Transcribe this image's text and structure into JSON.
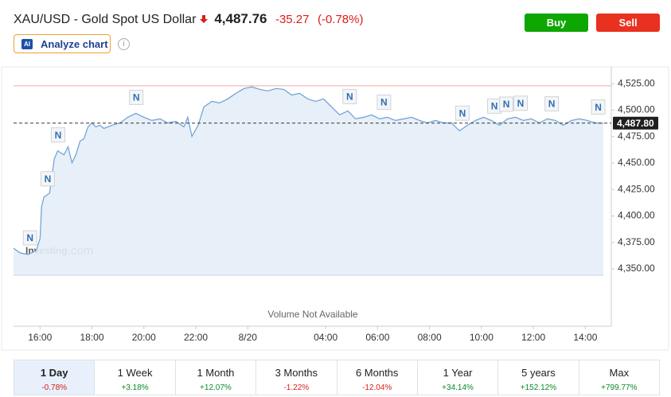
{
  "header": {
    "symbol_title": "XAU/USD - Gold Spot US Dollar",
    "price": "4,487.76",
    "change": "-35.27",
    "change_pct": "(-0.78%)"
  },
  "buttons": {
    "buy": "Buy",
    "sell": "Sell",
    "analyze_badge": "AI",
    "analyze": "Analyze chart",
    "info": "i"
  },
  "chart_data": {
    "type": "line",
    "x": [
      -1.02,
      -0.77,
      -0.46,
      -0.15,
      0,
      0.06,
      0.15,
      0.37,
      0.55,
      0.68,
      0.92,
      1.08,
      1.23,
      1.38,
      1.54,
      1.69,
      1.85,
      2,
      2.15,
      2.31,
      2.46,
      2.77,
      3.08,
      3.38,
      3.69,
      4,
      4.31,
      4.62,
      4.92,
      5.23,
      5.54,
      5.69,
      5.85,
      6.09,
      6.31,
      6.62,
      6.92,
      7.23,
      7.54,
      7.85,
      8.15,
      8.46,
      8.77,
      9.08,
      9.38,
      9.69,
      10,
      10.31,
      10.62,
      10.92,
      11.23,
      11.54,
      11.85,
      12.15,
      12.46,
      12.77,
      13.08,
      13.38,
      13.69,
      14,
      14.31,
      14.62,
      14.92,
      15.23,
      15.54,
      15.85,
      16.15,
      16.46,
      16.77,
      17.08,
      17.38,
      17.69,
      18,
      18.31,
      18.62,
      18.92,
      19.23,
      19.54,
      19.85,
      20.15,
      20.46,
      20.77,
      21.08,
      21.38,
      21.69
    ],
    "values": [
      4369.6,
      4365.1,
      4363.6,
      4367.3,
      4378.7,
      4408.8,
      4417.9,
      4421.7,
      4454.1,
      4461.6,
      4457.9,
      4465.4,
      4450.3,
      4457.9,
      4470.7,
      4473.0,
      4484.3,
      4488.0,
      4484.3,
      4485.8,
      4482.8,
      4485.8,
      4488.0,
      4493.3,
      4497.1,
      4493.3,
      4490.3,
      4491.8,
      4488.0,
      4489.5,
      4484.3,
      4493.3,
      4475.2,
      4485.8,
      4503.1,
      4508.4,
      4506.9,
      4510.7,
      4515.9,
      4520.5,
      4522.0,
      4519.7,
      4518.2,
      4520.5,
      4519.7,
      4514.4,
      4515.9,
      4510.7,
      4508.4,
      4510.7,
      4503.1,
      4495.6,
      4499.4,
      4491.8,
      4493.3,
      4495.6,
      4491.8,
      4493.3,
      4490.3,
      4491.8,
      4493.3,
      4490.3,
      4488.0,
      4490.3,
      4488.0,
      4488.0,
      4480.5,
      4485.8,
      4490.3,
      4493.3,
      4490.3,
      4485.8,
      4491.8,
      4493.3,
      4490.3,
      4491.8,
      4488.0,
      4491.8,
      4490.3,
      4485.8,
      4490.3,
      4491.8,
      4490.3,
      4488.0,
      4487.76
    ],
    "color": "#6b9fd6",
    "area_color": "#e4edf7",
    "xlim": [
      -1.02,
      22.0
    ],
    "xticks": [
      {
        "value": 0,
        "label": "16:00"
      },
      {
        "value": 2,
        "label": "18:00"
      },
      {
        "value": 4,
        "label": "20:00"
      },
      {
        "value": 6,
        "label": "22:00"
      },
      {
        "value": 8,
        "label": "8/20"
      },
      {
        "value": 11,
        "label": "04:00"
      },
      {
        "value": 13,
        "label": "06:00"
      },
      {
        "value": 15,
        "label": "08:00"
      },
      {
        "value": 17,
        "label": "10:00"
      },
      {
        "value": 19,
        "label": "12:00"
      },
      {
        "value": 21,
        "label": "14:00"
      }
    ],
    "ylim": [
      4344,
      4538
    ],
    "yticks": [
      {
        "value": 4350,
        "label": "4,350.00"
      },
      {
        "value": 4375,
        "label": "4,375.00"
      },
      {
        "value": 4400,
        "label": "4,400.00"
      },
      {
        "value": 4425,
        "label": "4,425.00"
      },
      {
        "value": 4450,
        "label": "4,450.00"
      },
      {
        "value": 4475,
        "label": "4,475.00"
      },
      {
        "value": 4500,
        "label": "4,500.00"
      },
      {
        "value": 4525,
        "label": "4,525.00"
      }
    ],
    "previous_close": 4523.03,
    "last_price": {
      "value": 4487.8,
      "label": "4,487.80"
    },
    "news_markers": [
      {
        "x": -0.4,
        "label": "N"
      },
      {
        "x": 0.28,
        "label": "N"
      },
      {
        "x": 0.68,
        "label": "N"
      },
      {
        "x": 3.69,
        "label": "N"
      },
      {
        "x": 11.91,
        "label": "N"
      },
      {
        "x": 13.23,
        "label": "N"
      },
      {
        "x": 16.25,
        "label": "N"
      },
      {
        "x": 17.48,
        "label": "N"
      },
      {
        "x": 17.94,
        "label": "N"
      },
      {
        "x": 18.49,
        "label": "N"
      },
      {
        "x": 19.69,
        "label": "N"
      },
      {
        "x": 21.48,
        "label": "N"
      }
    ],
    "watermark": "Investing",
    "watermark_suffix": ".com",
    "volume_note": "Volume Not Available"
  },
  "periods": [
    {
      "label": "1 Day",
      "change": "-0.78%"
    },
    {
      "label": "1 Week",
      "change": "+3.18%"
    },
    {
      "label": "1 Month",
      "change": "+12.07%"
    },
    {
      "label": "3 Months",
      "change": "-1.22%"
    },
    {
      "label": "6 Months",
      "change": "-12.04%"
    },
    {
      "label": "1 Year",
      "change": "+34.14%"
    },
    {
      "label": "5 years",
      "change": "+152.12%"
    },
    {
      "label": "Max",
      "change": "+799.77%"
    }
  ]
}
